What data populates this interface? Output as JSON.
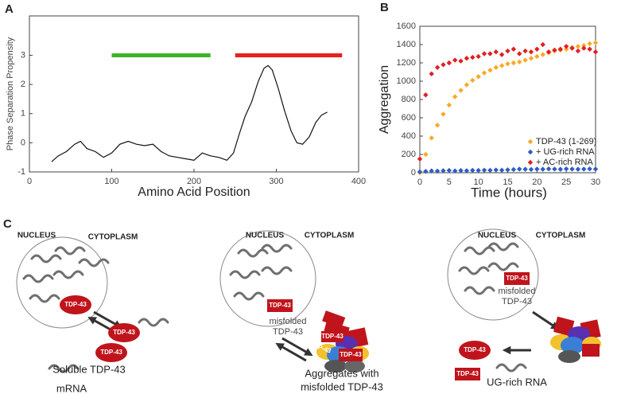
{
  "chart_data": [
    {
      "type": "line",
      "panel_label": "A",
      "xlabel": "Amino Acid Position",
      "ylabel": "Phase Separation Propensity",
      "xlim": [
        0,
        400
      ],
      "ylim": [
        -1,
        4.35
      ],
      "xticks": [
        0,
        100,
        200,
        300,
        400
      ],
      "yticks": [
        -1,
        0,
        1,
        2,
        3
      ],
      "x": [
        27,
        35,
        45,
        55,
        62,
        70,
        80,
        90,
        100,
        110,
        120,
        130,
        140,
        150,
        160,
        170,
        180,
        190,
        200,
        210,
        220,
        230,
        240,
        248,
        255,
        262,
        270,
        278,
        285,
        290,
        295,
        302,
        310,
        318,
        325,
        332,
        340,
        348,
        355,
        362
      ],
      "series": [
        {
          "color": "#111111",
          "values": [
            -0.65,
            -0.45,
            -0.3,
            -0.05,
            0.05,
            -0.2,
            -0.3,
            -0.5,
            -0.35,
            -0.05,
            0.05,
            -0.05,
            -0.1,
            -0.05,
            -0.3,
            -0.45,
            -0.5,
            -0.55,
            -0.6,
            -0.35,
            -0.45,
            -0.5,
            -0.6,
            -0.35,
            0.3,
            0.9,
            1.4,
            2.1,
            2.55,
            2.65,
            2.5,
            1.9,
            1.1,
            0.4,
            0.0,
            -0.05,
            0.2,
            0.7,
            0.95,
            1.05
          ]
        }
      ],
      "bars": [
        {
          "start": 100,
          "end": 220,
          "value": 3,
          "color": "#3cb42a"
        },
        {
          "start": 250,
          "end": 380,
          "value": 3,
          "color": "#e8201e"
        }
      ]
    },
    {
      "type": "scatter",
      "panel_label": "B",
      "xlabel": "Time (hours)",
      "ylabel": "Aggregation",
      "xlim": [
        0,
        30
      ],
      "ylim": [
        0,
        1600
      ],
      "xticks": [
        0,
        5,
        10,
        15,
        20,
        25,
        30
      ],
      "yticks": [
        0,
        200,
        400,
        600,
        800,
        1000,
        1200,
        1400,
        1600
      ],
      "legend": "lower right",
      "x": [
        0,
        1,
        2,
        3,
        4,
        5,
        6,
        7,
        8,
        9,
        10,
        11,
        12,
        13,
        14,
        15,
        16,
        17,
        18,
        19,
        20,
        21,
        22,
        23,
        24,
        25,
        26,
        27,
        28,
        29,
        30
      ],
      "series": [
        {
          "name": "TDP-43 (1-269)",
          "color": "#f7a928",
          "values": [
            0,
            200,
            380,
            520,
            640,
            740,
            830,
            900,
            960,
            1010,
            1050,
            1090,
            1120,
            1150,
            1170,
            1190,
            1200,
            1210,
            1230,
            1250,
            1270,
            1290,
            1310,
            1330,
            1340,
            1350,
            1370,
            1380,
            1390,
            1410,
            1420
          ]
        },
        {
          "name": "+ UG-rich RNA",
          "color": "#2f5cc4",
          "values": [
            10,
            15,
            20,
            18,
            22,
            25,
            20,
            24,
            22,
            26,
            25,
            28,
            27,
            30,
            28,
            32,
            35,
            40,
            38,
            36,
            40,
            38,
            42,
            40,
            38,
            42,
            40,
            38,
            40,
            42,
            40
          ]
        },
        {
          "name": "+ AC-rich RNA",
          "color": "#e02020",
          "values": [
            150,
            850,
            1080,
            1150,
            1180,
            1200,
            1230,
            1220,
            1250,
            1260,
            1270,
            1300,
            1300,
            1320,
            1290,
            1330,
            1350,
            1300,
            1330,
            1320,
            1350,
            1400,
            1320,
            1340,
            1350,
            1380,
            1360,
            1330,
            1360,
            1350,
            1320
          ]
        }
      ]
    }
  ],
  "panel_c": {
    "label": "C",
    "cells": [
      {
        "nucleus": "NUCLEUS",
        "cytoplasm": "CYTOPLASM",
        "proteins": [
          "TDP-43",
          "TDP-43",
          "TDP-43"
        ],
        "captions": [
          "Soluble TDP-43",
          "mRNA"
        ]
      },
      {
        "nucleus": "NUCLEUS",
        "cytoplasm": "CYTOPLASM",
        "proteins": [
          "TDP-43",
          "TDP-43",
          "TDP-43",
          "TDP-43"
        ],
        "captions": [
          "misfolded",
          "TDP-43",
          "Aggregates with",
          "misfolded TDP-43"
        ]
      },
      {
        "nucleus": "NUCLEUS",
        "cytoplasm": "CYTOPLASM",
        "proteins": [
          "TDP-43",
          "TDP-43",
          "TDP-43"
        ],
        "captions": [
          "misfolded",
          "TDP-43",
          "UG-rich RNA"
        ]
      }
    ]
  }
}
